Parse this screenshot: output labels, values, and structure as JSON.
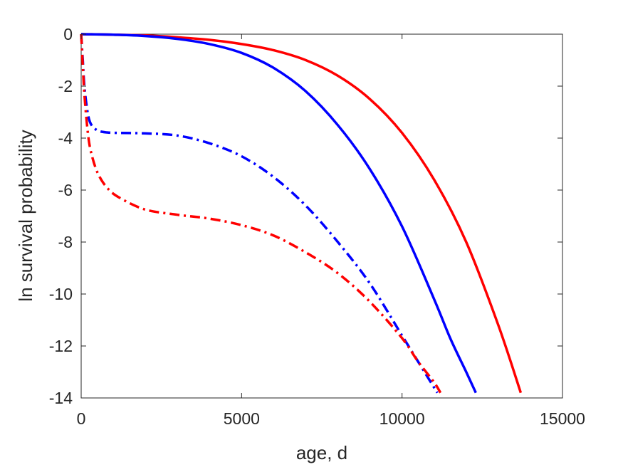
{
  "chart_data": {
    "type": "line",
    "title": "",
    "xlabel": "age, d",
    "ylabel": "ln survival probability",
    "xlim": [
      0,
      15000
    ],
    "ylim": [
      -14,
      0
    ],
    "xticks": [
      0,
      5000,
      10000,
      15000
    ],
    "xtick_labels": [
      "0",
      "5000",
      "10000",
      "15000"
    ],
    "yticks": [
      0,
      -2,
      -4,
      -6,
      -8,
      -10,
      -12,
      -14
    ],
    "ytick_labels": [
      "0",
      "-2",
      "-4",
      "-6",
      "-8",
      "-10",
      "-12",
      "-14"
    ],
    "grid": false,
    "legend": "none",
    "series": [
      {
        "color": "#ff0000",
        "style": "solid",
        "x": [
          0,
          1000,
          2000,
          3000,
          4000,
          5000,
          6000,
          7000,
          8000,
          9000,
          10000,
          11000,
          12000,
          13000,
          13700
        ],
        "y": [
          0,
          -0.02,
          -0.05,
          -0.12,
          -0.22,
          -0.38,
          -0.62,
          -1.0,
          -1.6,
          -2.5,
          -3.8,
          -5.6,
          -8.0,
          -11.2,
          -13.8
        ]
      },
      {
        "color": "#0000ff",
        "style": "solid",
        "x": [
          0,
          1000,
          2000,
          3000,
          4000,
          5000,
          6000,
          7000,
          8000,
          9000,
          10000,
          11000,
          11500,
          12000,
          12300
        ],
        "y": [
          0,
          -0.02,
          -0.07,
          -0.18,
          -0.38,
          -0.72,
          -1.3,
          -2.2,
          -3.5,
          -5.2,
          -7.4,
          -10.2,
          -11.7,
          -13.0,
          -13.8
        ]
      },
      {
        "color": "#0000ff",
        "style": "dashdot",
        "x": [
          0,
          50,
          100,
          200,
          300,
          500,
          800,
          1200,
          2000,
          3000,
          4000,
          5000,
          6000,
          7000,
          8000,
          9000,
          10000,
          10500,
          11000,
          11100
        ],
        "y": [
          0,
          -1.0,
          -2.0,
          -3.0,
          -3.45,
          -3.7,
          -3.78,
          -3.8,
          -3.82,
          -3.9,
          -4.2,
          -4.7,
          -5.5,
          -6.6,
          -8.0,
          -9.6,
          -11.6,
          -12.6,
          -13.6,
          -13.8
        ]
      },
      {
        "color": "#ff0000",
        "style": "dashdot",
        "x": [
          0,
          50,
          100,
          200,
          300,
          500,
          800,
          1200,
          2000,
          3000,
          4000,
          5000,
          6000,
          7000,
          8000,
          9000,
          10000,
          10500,
          11000,
          11200
        ],
        "y": [
          0,
          -1.2,
          -2.3,
          -3.7,
          -4.5,
          -5.3,
          -5.9,
          -6.3,
          -6.75,
          -6.95,
          -7.1,
          -7.35,
          -7.75,
          -8.4,
          -9.2,
          -10.3,
          -11.7,
          -12.6,
          -13.4,
          -13.8
        ]
      }
    ]
  }
}
